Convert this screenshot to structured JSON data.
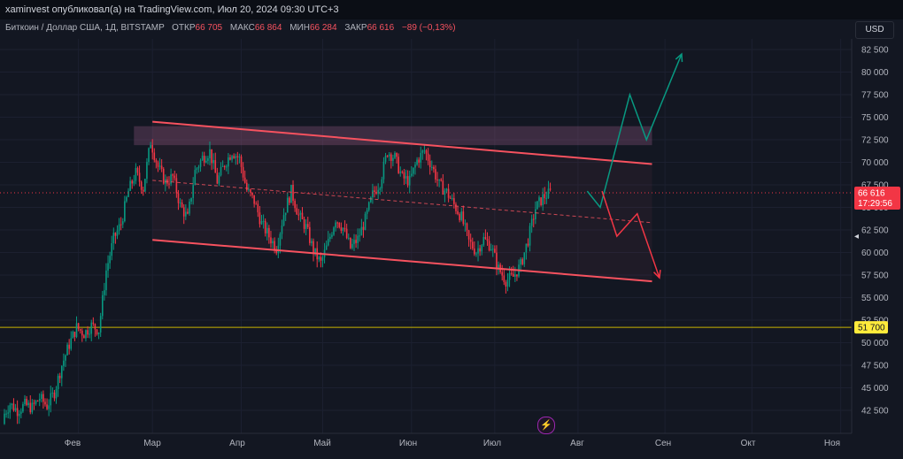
{
  "header": {
    "publisher_text": "xaminvest опубликовал(а) на TradingView.com, Июл 20, 2024 09:30 UTC+3"
  },
  "symbol_info": {
    "name": "Биткоин / Доллар США, 1Д, BITSTAMP",
    "open_label": "ОТКР",
    "open_value": "66 705",
    "high_label": "МАКС",
    "high_value": "66 864",
    "low_label": "МИН",
    "low_value": "66 284",
    "close_label": "ЗАКР",
    "close_value": "66 616",
    "change": "−89 (−0,13%)"
  },
  "currency_button": "USD",
  "events_icon": "lightning-icon",
  "chart_data": {
    "type": "candlestick",
    "title": "",
    "y_ticks": [
      "82 500",
      "80 000",
      "77 500",
      "75 000",
      "72 500",
      "70 000",
      "67 500",
      "65 000",
      "62 500",
      "60 000",
      "57 500",
      "55 000",
      "52 500",
      "50 000",
      "47 500",
      "45 000",
      "42 500"
    ],
    "y_tick_values": [
      82500,
      80000,
      77500,
      75000,
      72500,
      70000,
      67500,
      65000,
      62500,
      60000,
      57500,
      55000,
      52500,
      50000,
      47500,
      45000,
      42500
    ],
    "x_ticks": [
      "Фев",
      "Мар",
      "Апр",
      "Май",
      "Июн",
      "Июл",
      "Авг",
      "Сен",
      "Окт",
      "Ноя"
    ],
    "ylim": [
      40000,
      85000
    ],
    "current_price_label": "66 616",
    "countdown_label": "17:29:56",
    "support_label": "51 700",
    "support_level": 51700,
    "current_price": 66616,
    "colors": {
      "up": "#089981",
      "down": "#f23645",
      "channel": "#f7525f",
      "support": "#c9b300",
      "bullish": "#089981",
      "bearish": "#f23645"
    },
    "close_path": [
      41800,
      43200,
      42500,
      43100,
      42800,
      43900,
      43000,
      44500,
      47500,
      49800,
      51700,
      51000,
      51900,
      51400,
      58000,
      61500,
      63200,
      66800,
      68800,
      67100,
      72300,
      69500,
      67800,
      68400,
      65200,
      63800,
      69000,
      70500,
      71200,
      67900,
      69800,
      71200,
      70400,
      66900,
      65700,
      63200,
      61800,
      60500,
      64300,
      66800,
      64100,
      62800,
      60200,
      58800,
      61100,
      63800,
      62700,
      60500,
      61500,
      63600,
      66400,
      67800,
      71200,
      70500,
      68300,
      67900,
      70200,
      71300,
      69600,
      67500,
      66700,
      65300,
      63900,
      61200,
      60100,
      61500,
      60700,
      58200,
      56900,
      57300,
      58600,
      61400,
      64900,
      66100,
      66616
    ],
    "channel_upper": [
      [
        80,
        74500
      ],
      [
        350,
        69800
      ]
    ],
    "channel_lower": [
      [
        80,
        61400
      ],
      [
        350,
        56800
      ]
    ],
    "channel_mid": [
      [
        80,
        68000
      ],
      [
        350,
        63300
      ]
    ],
    "zone_top": [
      70,
      74000
    ],
    "zone_bottom": [
      70,
      71900
    ],
    "bullish_path": [
      [
        315,
        66800
      ],
      [
        322,
        65000
      ],
      [
        338,
        77500
      ],
      [
        347,
        72500
      ],
      [
        366,
        82000
      ]
    ],
    "bearish_path": [
      [
        323,
        66800
      ],
      [
        331,
        61800
      ],
      [
        342,
        64300
      ],
      [
        354,
        57200
      ]
    ]
  }
}
